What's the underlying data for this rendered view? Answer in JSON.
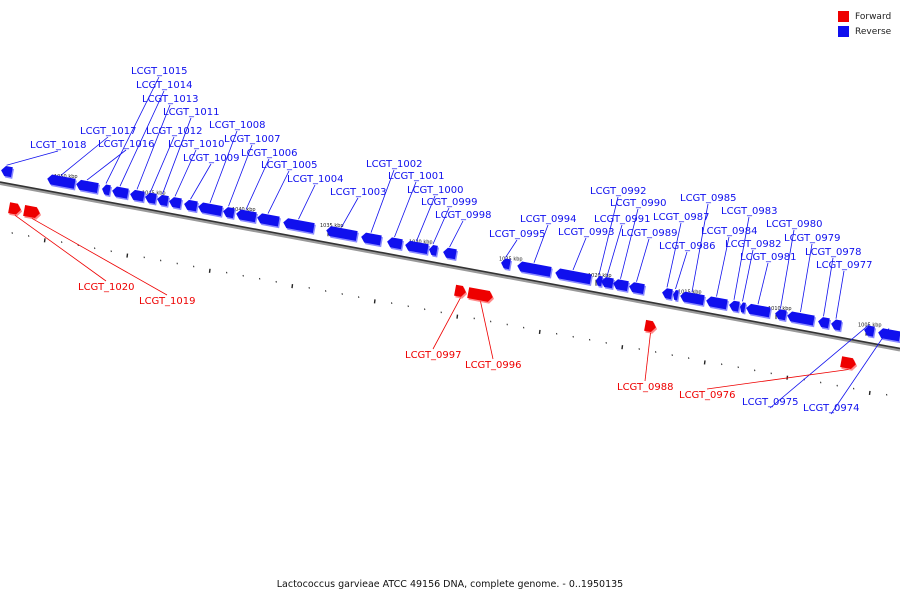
{
  "legend": {
    "forward_label": "Forward",
    "reverse_label": "Reverse",
    "forward_color": "#ee0000",
    "reverse_color": "#1010ee"
  },
  "caption": "Lactococcus garvieae ATCC 49156 DNA, complete genome. - 0..1950135",
  "scale_labels": [
    "1050 kbp",
    "1045 kbp",
    "1040 kbp",
    "1035 kbp",
    "1030 kbp",
    "1025 kbp",
    "1020 kbp",
    "1015 kbp",
    "1010 kbp",
    "1005 kbp"
  ],
  "genes": [
    {
      "tag": "LCGT_1018",
      "strand": "reverse"
    },
    {
      "tag": "LCGT_1017",
      "strand": "reverse"
    },
    {
      "tag": "LCGT_1016",
      "strand": "reverse"
    },
    {
      "tag": "LCGT_1015",
      "strand": "reverse"
    },
    {
      "tag": "LCGT_1014",
      "strand": "reverse"
    },
    {
      "tag": "LCGT_1013",
      "strand": "reverse"
    },
    {
      "tag": "LCGT_1012",
      "strand": "reverse"
    },
    {
      "tag": "LCGT_1011",
      "strand": "reverse"
    },
    {
      "tag": "LCGT_1010",
      "strand": "reverse"
    },
    {
      "tag": "LCGT_1009",
      "strand": "reverse"
    },
    {
      "tag": "LCGT_1008",
      "strand": "reverse"
    },
    {
      "tag": "LCGT_1007",
      "strand": "reverse"
    },
    {
      "tag": "LCGT_1006",
      "strand": "reverse"
    },
    {
      "tag": "LCGT_1005",
      "strand": "reverse"
    },
    {
      "tag": "LCGT_1004",
      "strand": "reverse"
    },
    {
      "tag": "LCGT_1003",
      "strand": "reverse"
    },
    {
      "tag": "LCGT_1002",
      "strand": "reverse"
    },
    {
      "tag": "LCGT_1001",
      "strand": "reverse"
    },
    {
      "tag": "LCGT_1000",
      "strand": "reverse"
    },
    {
      "tag": "LCGT_0999",
      "strand": "reverse"
    },
    {
      "tag": "LCGT_0998",
      "strand": "reverse"
    },
    {
      "tag": "LCGT_0995",
      "strand": "reverse"
    },
    {
      "tag": "LCGT_0994",
      "strand": "reverse"
    },
    {
      "tag": "LCGT_0993",
      "strand": "reverse"
    },
    {
      "tag": "LCGT_0992",
      "strand": "reverse"
    },
    {
      "tag": "LCGT_0991",
      "strand": "reverse"
    },
    {
      "tag": "LCGT_0990",
      "strand": "reverse"
    },
    {
      "tag": "LCGT_0989",
      "strand": "reverse"
    },
    {
      "tag": "LCGT_0987",
      "strand": "reverse"
    },
    {
      "tag": "LCGT_0986",
      "strand": "reverse"
    },
    {
      "tag": "LCGT_0985",
      "strand": "reverse"
    },
    {
      "tag": "LCGT_0984",
      "strand": "reverse"
    },
    {
      "tag": "LCGT_0983",
      "strand": "reverse"
    },
    {
      "tag": "LCGT_0982",
      "strand": "reverse"
    },
    {
      "tag": "LCGT_0981",
      "strand": "reverse"
    },
    {
      "tag": "LCGT_0980",
      "strand": "reverse"
    },
    {
      "tag": "LCGT_0979",
      "strand": "reverse"
    },
    {
      "tag": "LCGT_0978",
      "strand": "reverse"
    },
    {
      "tag": "LCGT_0977",
      "strand": "reverse"
    },
    {
      "tag": "LCGT_0975",
      "strand": "reverse"
    },
    {
      "tag": "LCGT_0974",
      "strand": "reverse"
    },
    {
      "tag": "LCGT_1020",
      "strand": "forward"
    },
    {
      "tag": "LCGT_1019",
      "strand": "forward"
    },
    {
      "tag": "LCGT_0997",
      "strand": "forward"
    },
    {
      "tag": "LCGT_0996",
      "strand": "forward"
    },
    {
      "tag": "LCGT_0988",
      "strand": "forward"
    },
    {
      "tag": "LCGT_0976",
      "strand": "forward"
    }
  ]
}
